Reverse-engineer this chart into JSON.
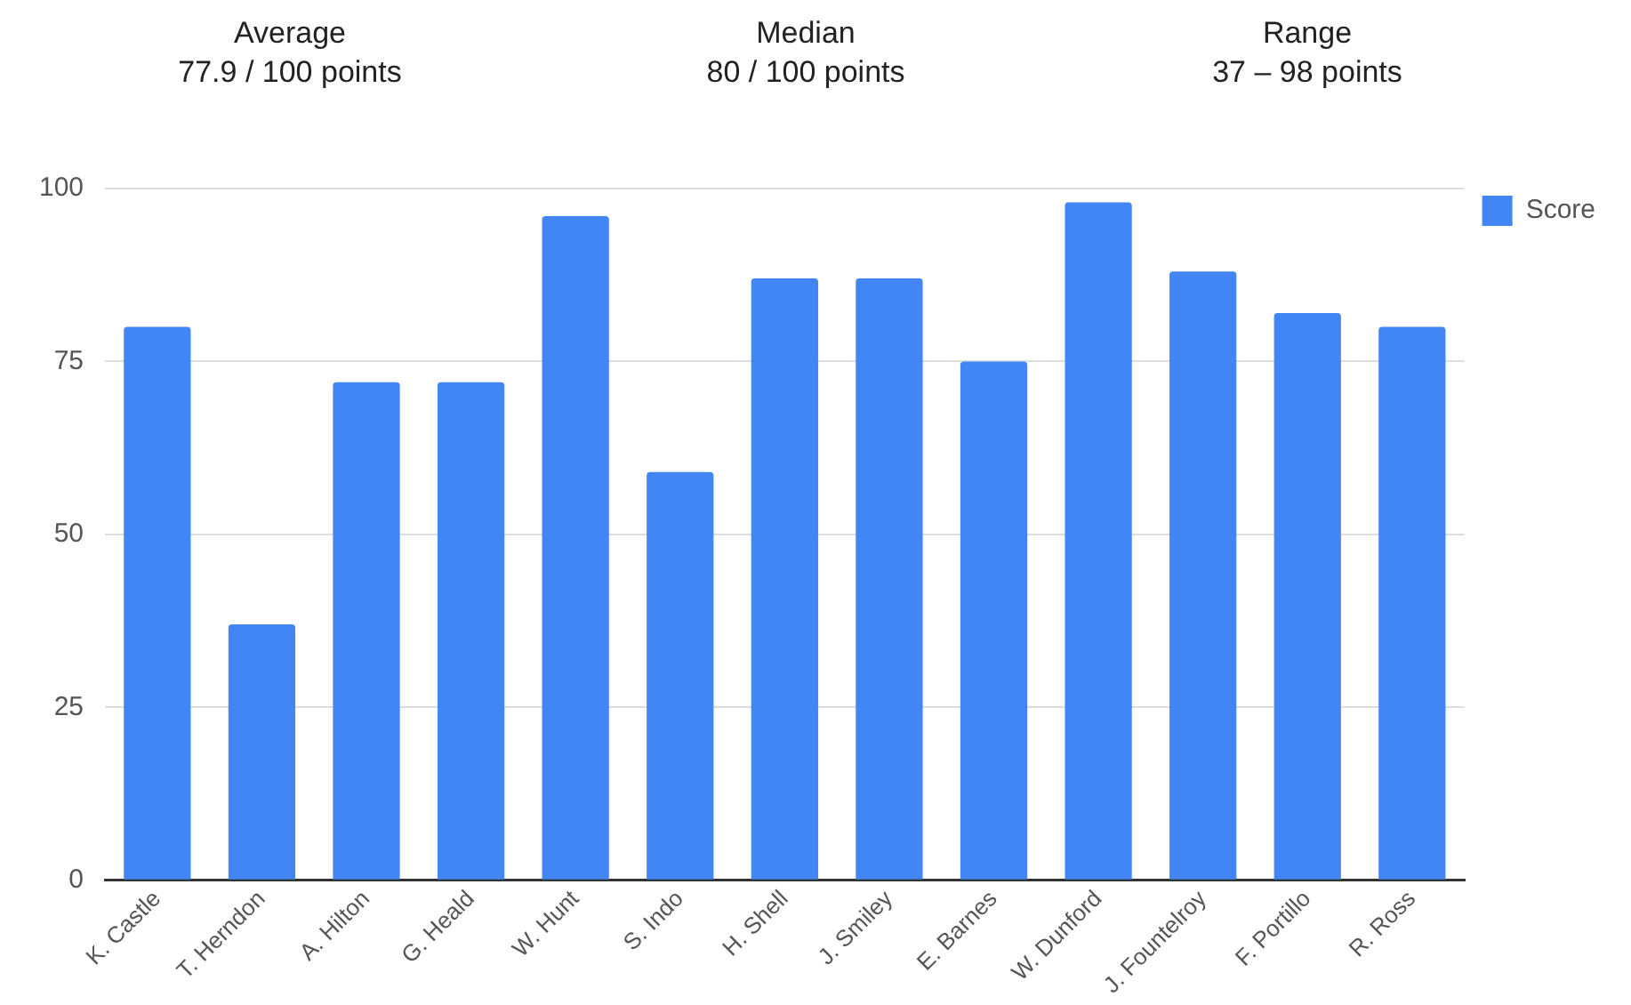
{
  "chart_data": {
    "type": "bar",
    "annotations": [
      "Average\n77.9 / 100 points",
      "Median\n80 / 100 points",
      "Range\n37 – 98 points"
    ],
    "categories": [
      "K. Castle",
      "T. Herndon",
      "A. Hilton",
      "G. Heald",
      "W. Hunt",
      "S. Indo",
      "H. Shell",
      "J. Smiley",
      "E. Barnes",
      "W. Dunford",
      "J. Fountelroy",
      "F. Portillo",
      "R. Ross"
    ],
    "series": [
      {
        "name": "Score",
        "color": "#4285f4",
        "values": [
          80,
          37,
          72,
          72,
          96,
          59,
          87,
          87,
          75,
          98,
          88,
          82,
          80
        ]
      }
    ],
    "ylim": [
      0,
      100
    ],
    "yticks": [
      0,
      25,
      50,
      75,
      100
    ],
    "grid": "y",
    "legend": "top right"
  }
}
